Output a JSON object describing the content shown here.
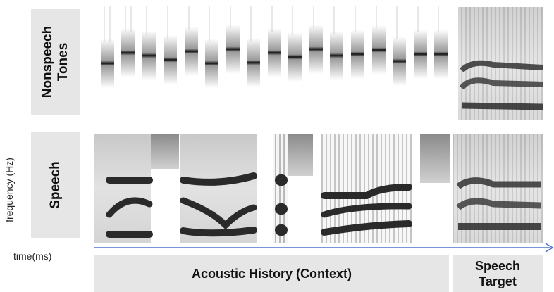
{
  "labels": {
    "nonspeech": "Nonspeech\nTones",
    "speech": "Speech",
    "frequency_axis": "frequency (Hz)",
    "time_axis": "time(ms)",
    "acoustic_history": "Acoustic History (Context)",
    "speech_target": "Speech\nTarget"
  },
  "colors": {
    "label_bg": "#e6e6e6",
    "arrow": "#4a74c9",
    "ink": "#1a1a1a"
  },
  "icons": [
    "time-arrow-icon"
  ]
}
